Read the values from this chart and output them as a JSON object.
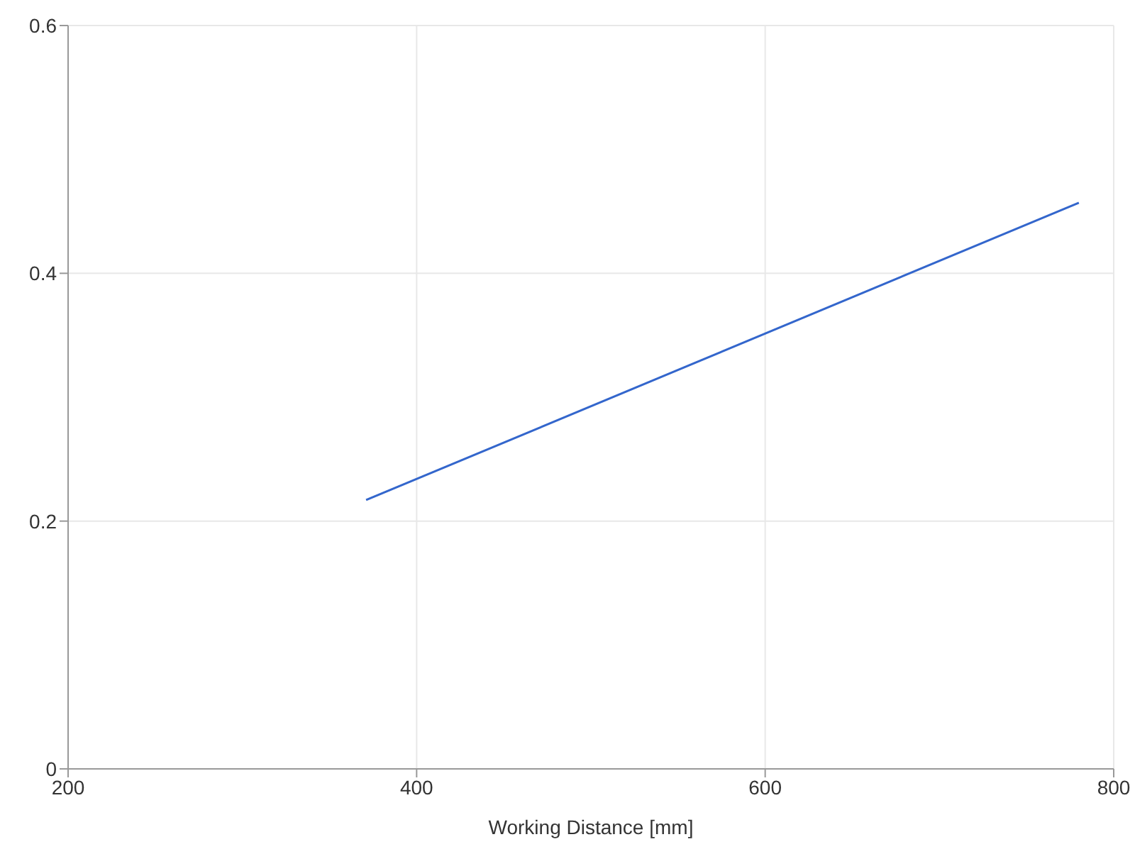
{
  "chart_data": {
    "type": "line",
    "xlabel": "Working Distance [mm]",
    "x": [
      371,
      780
    ],
    "series": [
      {
        "color": "#3366cc",
        "values": [
          0.217,
          0.457
        ]
      }
    ],
    "xlim": [
      200,
      800
    ],
    "xticks": [
      200,
      400,
      600,
      800
    ],
    "ylim": [
      0,
      0.6
    ],
    "yticks": [
      0,
      0.2,
      0.4,
      0.6
    ],
    "grid": true,
    "marker": "none",
    "line_style": "solid"
  }
}
